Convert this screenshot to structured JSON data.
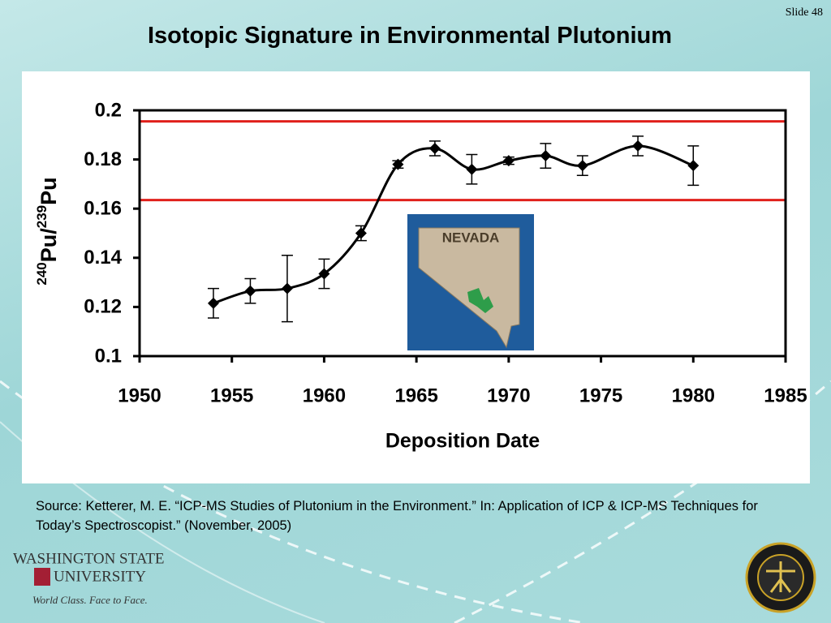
{
  "slide_number": "Slide 48",
  "chart_data": {
    "type": "line",
    "title": "Isotopic Signature in Environmental Plutonium",
    "xlabel": "Deposition Date",
    "ylabel": [
      {
        "text": "240",
        "sup": true
      },
      {
        "text": "Pu/",
        "sup": false
      },
      {
        "text": "239",
        "sup": true
      },
      {
        "text": "Pu",
        "sup": false
      }
    ],
    "x": [
      1954,
      1956,
      1958,
      1960,
      1962,
      1964,
      1966,
      1968,
      1970,
      1972,
      1974,
      1977,
      1980
    ],
    "values": [
      0.1215,
      0.1265,
      0.1275,
      0.1335,
      0.15,
      0.178,
      0.1845,
      0.176,
      0.1795,
      0.1815,
      0.1775,
      0.1855,
      0.1775
    ],
    "errors": [
      0.006,
      0.005,
      0.0135,
      0.006,
      0.003,
      0.0015,
      0.003,
      0.006,
      0.0015,
      0.005,
      0.004,
      0.004,
      0.008
    ],
    "color": "#000000",
    "xlim": [
      1950,
      1985
    ],
    "xticks": [
      1950,
      1955,
      1960,
      1965,
      1970,
      1975,
      1980,
      1985
    ],
    "ylim": [
      0.1,
      0.2
    ],
    "yticks": [
      0.1,
      0.12,
      0.14,
      0.16,
      0.18,
      0.2
    ],
    "reference_lines": [
      {
        "value": 0.1955,
        "color": "#e0201b"
      },
      {
        "value": 0.1635,
        "color": "#e0201b"
      }
    ]
  },
  "inset_map": {
    "label": "NEVADA"
  },
  "source": "Source: Ketterer, M. E. “ICP-MS Studies of Plutonium in the Environment.” In: Application of ICP & ICP-MS Techniques for Today’s Spectroscopist.” (November, 2005)",
  "logo": {
    "line1": "WASHINGTON STATE",
    "line2": "UNIVERSITY",
    "tagline": "World Class. Face to Face."
  }
}
